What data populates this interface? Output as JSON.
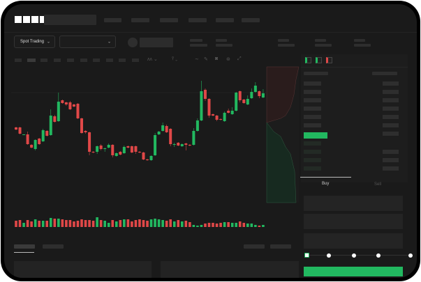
{
  "header": {
    "logo": "OKX"
  },
  "market": {
    "mode_label": "Spot Trading"
  },
  "order_form": {
    "tabs": [
      "Buy",
      "Sell"
    ],
    "active_tab": "Buy",
    "slider_value_percent": 0,
    "slider_stops": [
      0,
      25,
      50,
      75,
      100
    ]
  },
  "colors": {
    "up": "#22b860",
    "down": "#e04848",
    "accent": "#22b860",
    "background": "#1a1a1a"
  },
  "icons": [
    "chevron-down-icon",
    "line-tool-icon",
    "pencil-icon",
    "camera-icon",
    "settings-icon",
    "fullscreen-icon",
    "order-book-both-icon",
    "order-book-bids-icon",
    "order-book-asks-icon"
  ],
  "chart_data": {
    "type": "candlestick",
    "grid": false,
    "candles": [
      [
        68,
        69,
        64,
        65
      ],
      [
        68,
        69,
        58,
        59
      ],
      [
        57,
        58,
        57,
        58
      ],
      [
        58,
        62,
        43,
        44
      ],
      [
        43,
        44,
        38,
        39
      ],
      [
        37,
        51,
        35,
        50
      ],
      [
        52,
        53,
        43,
        44
      ],
      [
        48,
        66,
        47,
        64
      ],
      [
        63,
        64,
        55,
        56
      ],
      [
        57,
        94,
        56,
        85
      ],
      [
        84,
        86,
        75,
        76
      ],
      [
        77,
        118,
        76,
        105
      ],
      [
        107,
        108,
        102,
        103
      ],
      [
        104,
        105,
        99,
        101
      ],
      [
        104,
        106,
        93,
        94
      ],
      [
        101,
        102,
        97,
        98
      ],
      [
        102,
        103,
        80,
        81
      ],
      [
        81,
        82,
        59,
        60
      ],
      [
        63,
        64,
        59,
        61
      ],
      [
        61,
        62,
        28,
        33
      ],
      [
        33,
        34,
        31,
        32
      ],
      [
        33,
        42,
        30,
        41
      ],
      [
        42,
        44,
        35,
        37
      ],
      [
        37,
        39,
        33,
        38
      ],
      [
        39,
        45,
        38,
        43
      ],
      [
        43,
        44,
        25,
        28
      ],
      [
        27,
        32,
        26,
        31
      ],
      [
        33,
        34,
        28,
        29
      ],
      [
        31,
        42,
        30,
        40
      ],
      [
        41,
        42,
        38,
        39
      ],
      [
        41,
        42,
        31,
        32
      ],
      [
        41,
        42,
        30,
        33
      ],
      [
        33,
        34,
        31,
        32
      ],
      [
        32,
        33,
        21,
        22
      ],
      [
        22,
        23,
        20,
        21
      ],
      [
        21,
        28,
        20,
        27
      ],
      [
        28,
        60,
        27,
        57
      ],
      [
        58,
        63,
        57,
        62
      ],
      [
        63,
        75,
        62,
        71
      ],
      [
        70,
        72,
        60,
        61
      ],
      [
        66,
        67,
        41,
        44
      ],
      [
        43,
        46,
        40,
        44
      ],
      [
        46,
        47,
        41,
        42
      ],
      [
        41,
        45,
        40,
        44
      ],
      [
        45,
        46,
        35,
        43
      ],
      [
        43,
        44,
        41,
        42
      ],
      [
        43,
        67,
        42,
        63
      ],
      [
        63,
        81,
        62,
        78
      ],
      [
        78,
        135,
        77,
        120
      ],
      [
        122,
        124,
        106,
        109
      ],
      [
        109,
        110,
        82,
        85
      ],
      [
        87,
        88,
        84,
        85
      ],
      [
        85,
        86,
        77,
        79
      ],
      [
        80,
        81,
        78,
        79
      ],
      [
        77,
        91,
        76,
        89
      ],
      [
        92,
        95,
        88,
        89
      ],
      [
        87,
        97,
        86,
        92
      ],
      [
        92,
        119,
        91,
        118
      ],
      [
        120,
        121,
        104,
        107
      ],
      [
        108,
        109,
        102,
        103
      ],
      [
        101,
        114,
        100,
        109
      ],
      [
        110,
        124,
        109,
        119
      ],
      [
        119,
        133,
        118,
        128
      ],
      [
        120,
        121,
        110,
        113
      ],
      [
        111,
        123,
        110,
        117
      ]
    ],
    "volumes": [
      9,
      10,
      6,
      10,
      8,
      11,
      9,
      9,
      9,
      13,
      12,
      12,
      11,
      10,
      10,
      8,
      9,
      11,
      10,
      10,
      9,
      14,
      10,
      9,
      6,
      10,
      8,
      10,
      11,
      11,
      8,
      10,
      11,
      10,
      9,
      11,
      12,
      11,
      10,
      9,
      11,
      8,
      10,
      8,
      9,
      7,
      3,
      2,
      3,
      5,
      6,
      6,
      5,
      6,
      7,
      7,
      6,
      6,
      8,
      6,
      5,
      5,
      3,
      2,
      3
    ]
  }
}
